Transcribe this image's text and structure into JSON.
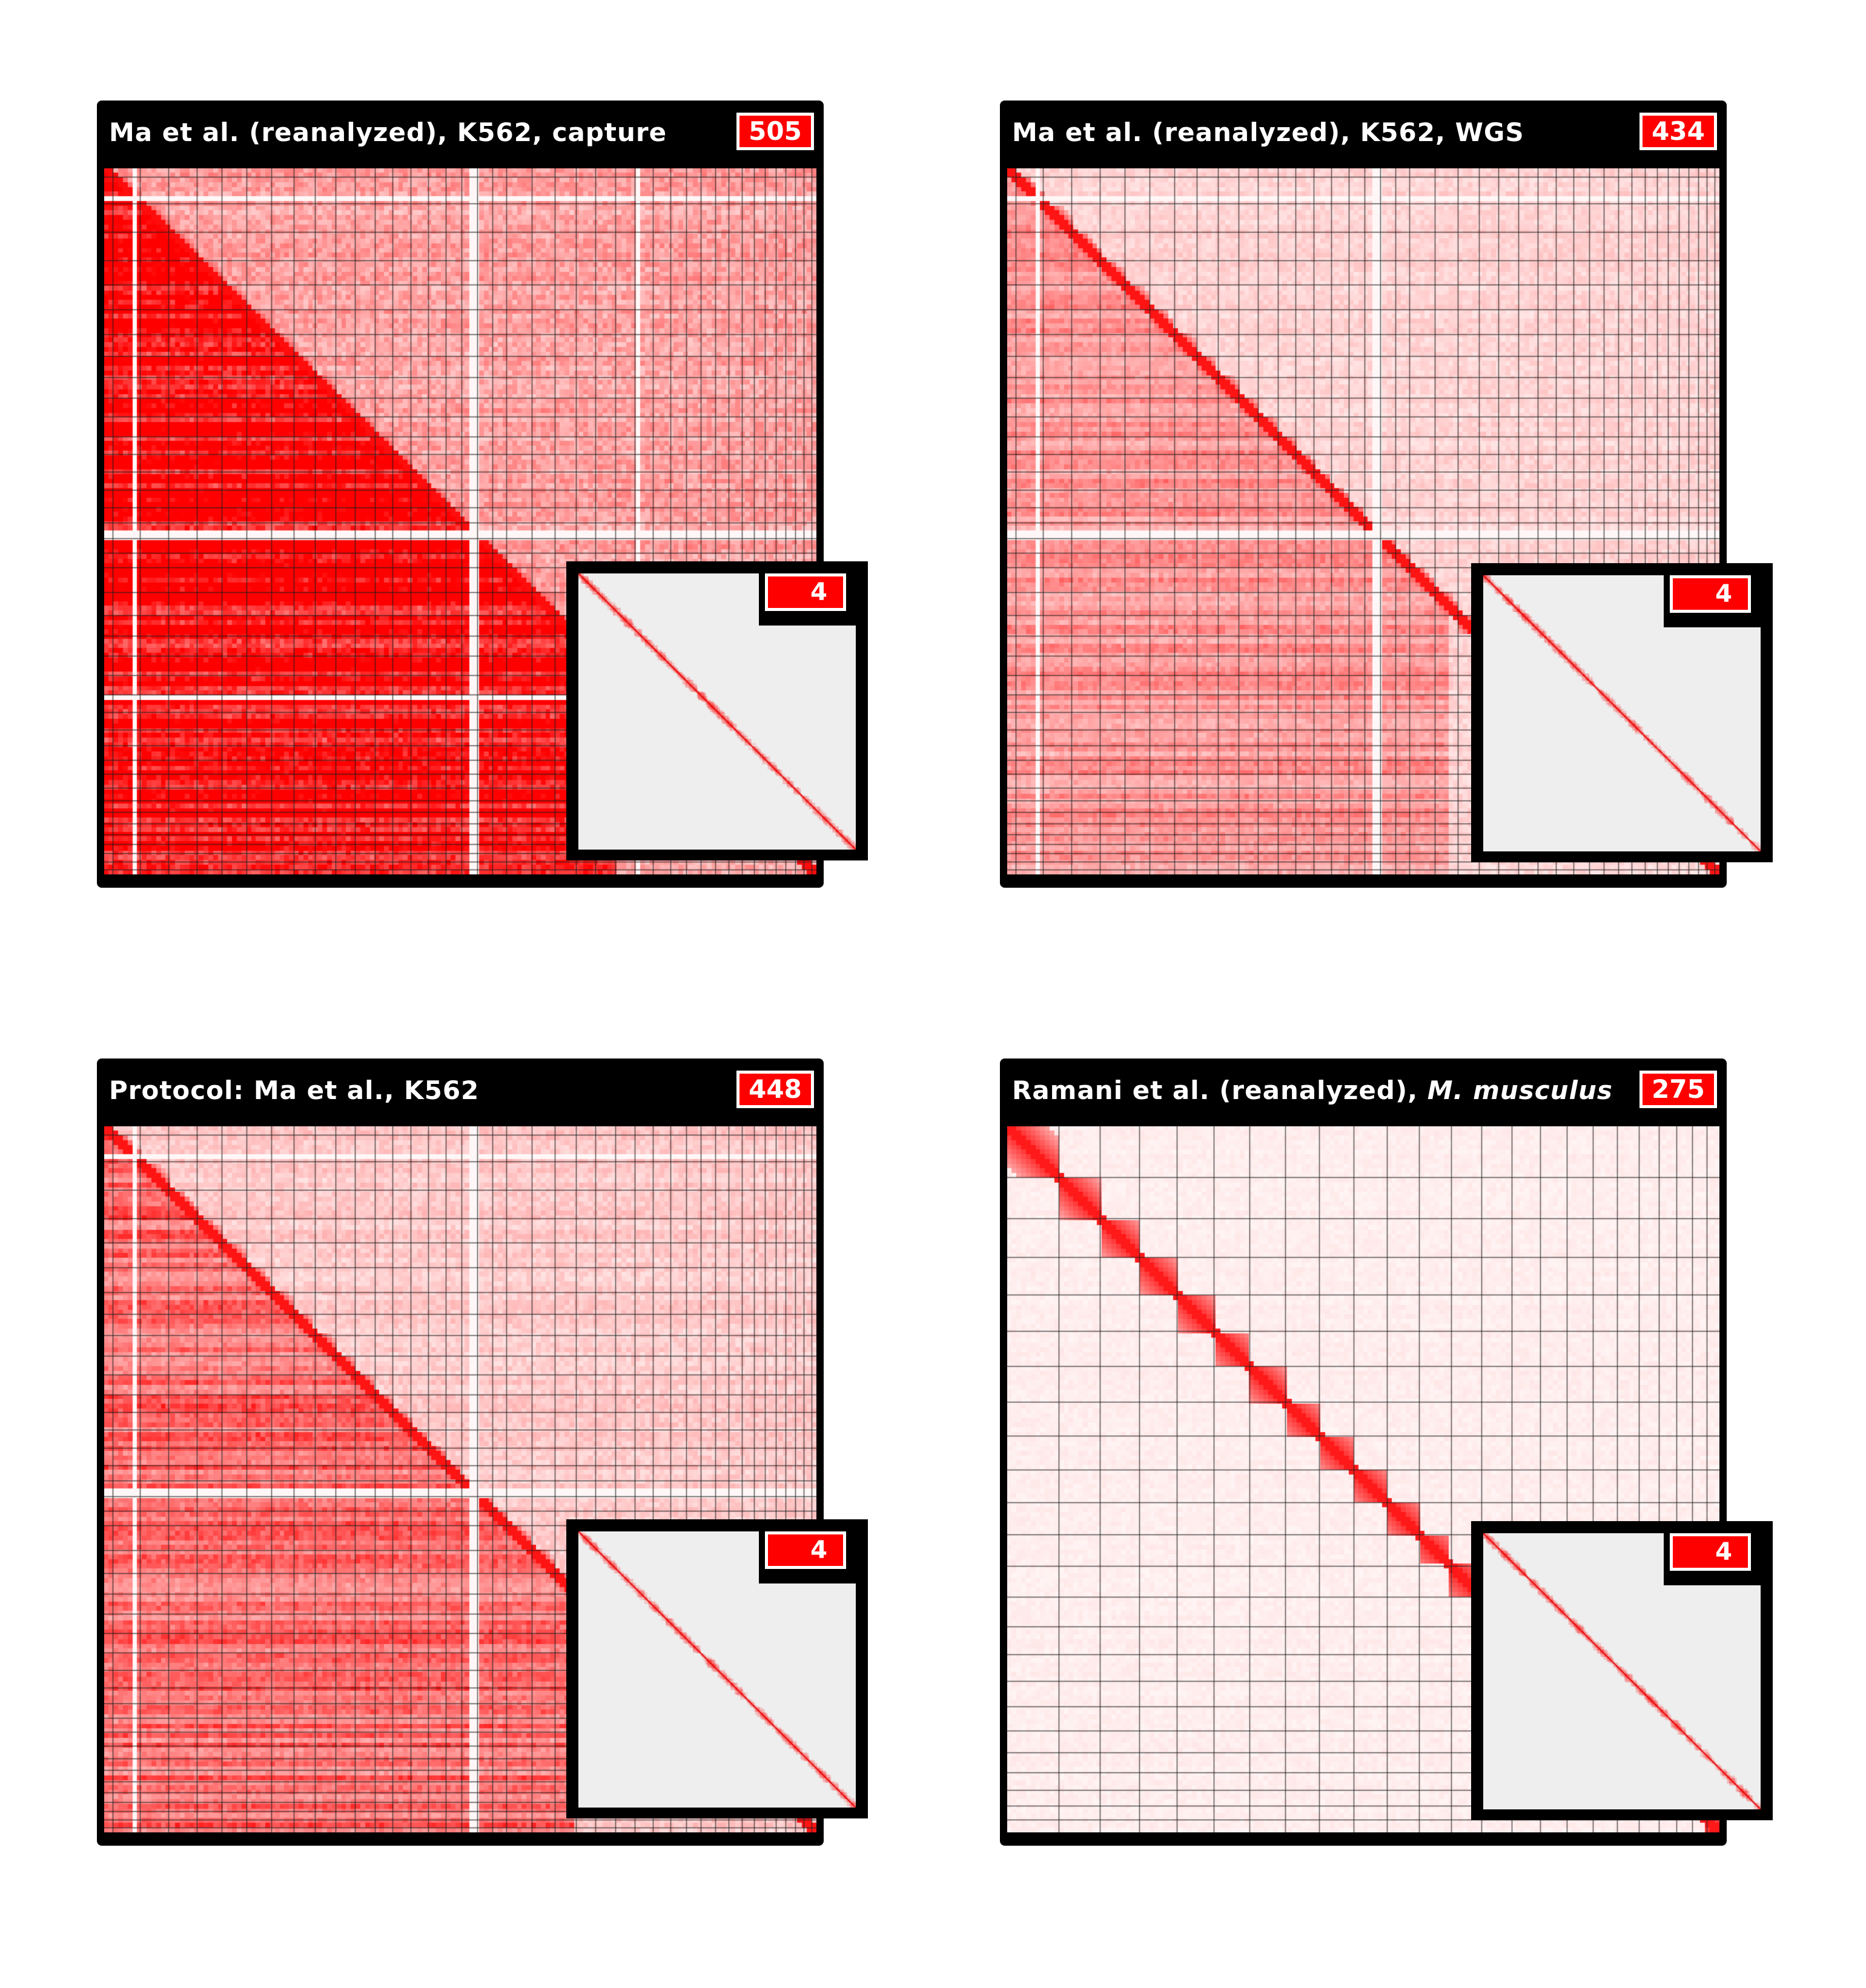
{
  "figure": {
    "panels": [
      {
        "title": "Ma et al. (reanalyzed), K562, capture",
        "title_italic": "",
        "badge": "505",
        "inset_badge": "4"
      },
      {
        "title": "Ma et al. (reanalyzed), K562, WGS",
        "title_italic": "",
        "badge": "434",
        "inset_badge": "4"
      },
      {
        "title": "Protocol: Ma et al., K562",
        "title_italic": "",
        "badge": "448",
        "inset_badge": "4"
      },
      {
        "title": "Ramani et al. (reanalyzed), ",
        "title_italic": "M. musculus",
        "badge": "275",
        "inset_badge": "4"
      }
    ]
  },
  "colors": {
    "frame": "#000000",
    "heat": "#ff0000",
    "heat_background": "#ffffff",
    "inset_background": "#eeeeee",
    "badge": "#ff0000",
    "badge_text": "#ffffff"
  },
  "chart_data": [
    {
      "type": "heatmap",
      "title": "Ma et al. (reanalyzed), K562, capture",
      "badge_value": 505,
      "inset_badge_value": 4,
      "values_shown": false,
      "chromosome_boundaries": [
        0.012,
        0.05,
        0.09,
        0.13,
        0.165,
        0.2,
        0.235,
        0.266,
        0.296,
        0.325,
        0.352,
        0.38,
        0.405,
        0.43,
        0.455,
        0.48,
        0.502,
        0.524,
        0.545,
        0.565,
        0.6,
        0.633,
        0.662,
        0.69,
        0.718,
        0.745,
        0.77,
        0.795,
        0.817,
        0.838,
        0.858,
        0.877,
        0.895,
        0.912,
        0.928,
        0.943,
        0.957,
        0.97,
        0.982,
        0.993
      ],
      "pattern": {
        "background_level": 0.3,
        "diagonal_level": 0.95,
        "tad_size": 0.02,
        "lower_triangle_level": 0.72,
        "lower_triangle_extent": 0.72,
        "row_stripe_level": 0.4,
        "blank_lines": [
          0.045,
          0.52,
          0.52,
          0.75
        ],
        "inset_background": 0.05,
        "inset_diagonal": 0.85
      }
    },
    {
      "type": "heatmap",
      "title": "Ma et al. (reanalyzed), K562, WGS",
      "badge_value": 434,
      "inset_badge_value": 4,
      "values_shown": false,
      "chromosome_boundaries": [
        0.012,
        0.05,
        0.09,
        0.13,
        0.165,
        0.2,
        0.235,
        0.266,
        0.296,
        0.325,
        0.352,
        0.38,
        0.405,
        0.43,
        0.455,
        0.48,
        0.502,
        0.524,
        0.545,
        0.565,
        0.6,
        0.633,
        0.662,
        0.69,
        0.718,
        0.745,
        0.77,
        0.795,
        0.817,
        0.838,
        0.858,
        0.877,
        0.895,
        0.912,
        0.928,
        0.943,
        0.957,
        0.97,
        0.982,
        0.993
      ],
      "pattern": {
        "background_level": 0.14,
        "diagonal_level": 0.92,
        "tad_size": 0.02,
        "lower_triangle_level": 0.26,
        "lower_triangle_extent": 0.62,
        "row_stripe_level": 0.18,
        "blank_lines": [
          0.045,
          0.52
        ],
        "inset_background": 0.04,
        "inset_diagonal": 0.8
      }
    },
    {
      "type": "heatmap",
      "title": "Protocol: Ma et al., K562",
      "badge_value": 448,
      "inset_badge_value": 4,
      "values_shown": false,
      "chromosome_boundaries": [
        0.012,
        0.05,
        0.09,
        0.13,
        0.165,
        0.2,
        0.235,
        0.266,
        0.296,
        0.325,
        0.352,
        0.38,
        0.405,
        0.43,
        0.455,
        0.48,
        0.502,
        0.524,
        0.545,
        0.565,
        0.6,
        0.633,
        0.662,
        0.69,
        0.718,
        0.745,
        0.77,
        0.795,
        0.817,
        0.838,
        0.858,
        0.877,
        0.895,
        0.912,
        0.928,
        0.943,
        0.957,
        0.97,
        0.982,
        0.993
      ],
      "pattern": {
        "background_level": 0.17,
        "diagonal_level": 0.92,
        "tad_size": 0.02,
        "lower_triangle_level": 0.4,
        "lower_triangle_extent": 0.66,
        "row_stripe_level": 0.24,
        "blank_lines": [
          0.045,
          0.52
        ],
        "inset_background": 0.04,
        "inset_diagonal": 0.8
      }
    },
    {
      "type": "heatmap",
      "title": "Ramani et al. (reanalyzed), M. musculus",
      "badge_value": 275,
      "inset_badge_value": 4,
      "values_shown": false,
      "chromosome_boundaries": [
        0.072,
        0.13,
        0.185,
        0.238,
        0.29,
        0.34,
        0.39,
        0.438,
        0.486,
        0.533,
        0.578,
        0.623,
        0.666,
        0.708,
        0.748,
        0.786,
        0.822,
        0.856,
        0.887,
        0.915,
        0.94,
        0.962,
        0.982
      ],
      "pattern": {
        "background_level": 0.06,
        "diagonal_level": 0.9,
        "tad_size": 0.055,
        "lower_triangle_level": 0.0,
        "lower_triangle_extent": 0.0,
        "row_stripe_level": 0.05,
        "blank_lines": [],
        "inset_background": 0.03,
        "inset_diagonal": 0.8
      }
    }
  ]
}
